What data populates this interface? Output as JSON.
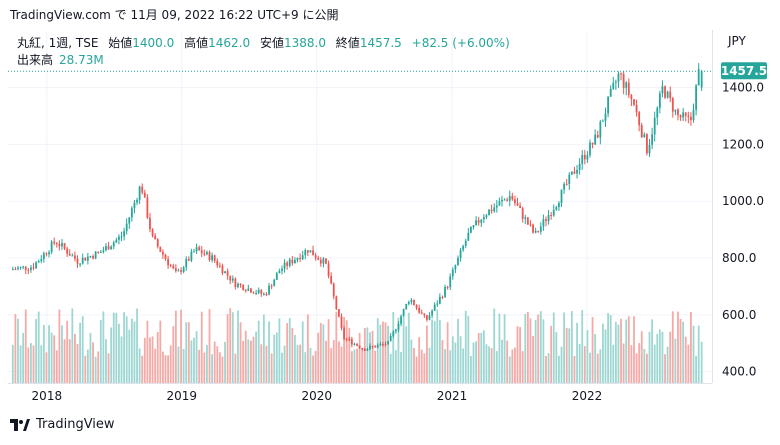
{
  "caption": "TradingView.com で 11月 09, 2022 16:22 UTC+9 に公開",
  "legend": {
    "symbol": "丸紅, 1週, TSE",
    "open_label": "始値",
    "open": "1400.0",
    "high_label": "高値",
    "high": "1462.0",
    "low_label": "安値",
    "low": "1388.0",
    "close_label": "終値",
    "close": "1457.5",
    "change": "+82.5 (+6.00%)",
    "volume_label": "出来高",
    "volume": "28.73M"
  },
  "currency": "JPY",
  "last_price_badge": "1457.5",
  "brand_text": "TradingView",
  "icons": {
    "brand_logo": "tradingview-logo-icon"
  },
  "colors": {
    "up": "#26a69a",
    "down": "#ef5350",
    "up_volume": "#9ed7d2",
    "down_volume": "#f5aaa8",
    "badge": "#26a69a",
    "grid": "#f0f3fa",
    "axis_text": "#131722"
  },
  "chart_data": {
    "type": "candlestick",
    "interval": "weekly",
    "symbol": "丸紅",
    "exchange": "TSE",
    "currency": "JPY",
    "y_ticks": [
      "400.0",
      "600.0",
      "800.0",
      "1000.0",
      "1200.0",
      "1400.0"
    ],
    "y_tick_values": [
      400,
      600,
      800,
      1000,
      1200,
      1400
    ],
    "ylim": [
      360,
      1490
    ],
    "x_ticks": [
      "2018",
      "2019",
      "2020",
      "2021",
      "2022"
    ],
    "x_tick_dates": [
      "2018-01-01",
      "2019-01-01",
      "2020-01-01",
      "2021-01-01",
      "2022-01-01"
    ],
    "xlim": [
      "2017-09-18",
      "2022-12-05"
    ],
    "last_candle": {
      "date": "2022-11-07",
      "open": 1400.0,
      "high": 1462.0,
      "low": 1388.0,
      "close": 1457.5,
      "volume": "28.73M"
    },
    "price_path": [
      {
        "date": "2017-10-01",
        "close": 760
      },
      {
        "date": "2017-12-01",
        "close": 770
      },
      {
        "date": "2018-02-01",
        "close": 860
      },
      {
        "date": "2018-04-01",
        "close": 790
      },
      {
        "date": "2018-06-01",
        "close": 820
      },
      {
        "date": "2018-08-01",
        "close": 880
      },
      {
        "date": "2018-09-20",
        "close": 1060
      },
      {
        "date": "2018-10-20",
        "close": 870
      },
      {
        "date": "2018-12-25",
        "close": 740
      },
      {
        "date": "2019-02-15",
        "close": 830
      },
      {
        "date": "2019-04-01",
        "close": 800
      },
      {
        "date": "2019-06-01",
        "close": 710
      },
      {
        "date": "2019-08-20",
        "close": 670
      },
      {
        "date": "2019-10-01",
        "close": 760
      },
      {
        "date": "2019-12-15",
        "close": 830
      },
      {
        "date": "2020-02-01",
        "close": 780
      },
      {
        "date": "2020-03-20",
        "close": 520
      },
      {
        "date": "2020-05-15",
        "close": 480
      },
      {
        "date": "2020-07-20",
        "close": 500
      },
      {
        "date": "2020-09-15",
        "close": 660
      },
      {
        "date": "2020-10-30",
        "close": 580
      },
      {
        "date": "2020-12-25",
        "close": 700
      },
      {
        "date": "2021-02-20",
        "close": 880
      },
      {
        "date": "2021-04-01",
        "close": 950
      },
      {
        "date": "2021-06-15",
        "close": 1020
      },
      {
        "date": "2021-08-20",
        "close": 880
      },
      {
        "date": "2021-10-15",
        "close": 990
      },
      {
        "date": "2021-12-15",
        "close": 1130
      },
      {
        "date": "2022-02-01",
        "close": 1220
      },
      {
        "date": "2022-03-15",
        "close": 1380
      },
      {
        "date": "2022-04-05",
        "close": 1450
      },
      {
        "date": "2022-05-15",
        "close": 1340
      },
      {
        "date": "2022-06-20",
        "close": 1180
      },
      {
        "date": "2022-08-01",
        "close": 1400
      },
      {
        "date": "2022-09-10",
        "close": 1300
      },
      {
        "date": "2022-10-15",
        "close": 1280
      },
      {
        "date": "2022-11-07",
        "close": 1457.5
      }
    ]
  }
}
